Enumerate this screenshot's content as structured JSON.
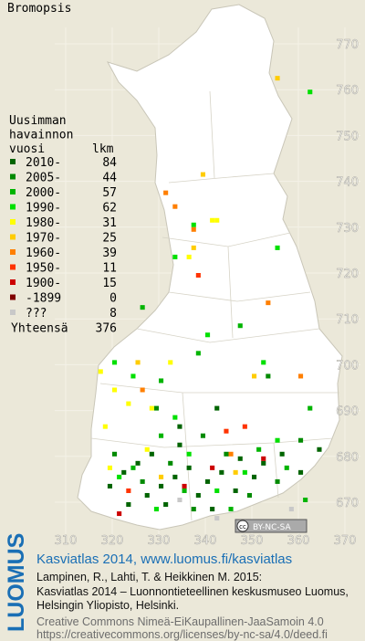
{
  "title": "Bromopsis",
  "legend": {
    "header": [
      "Uusimman",
      "havainnon",
      "vuosi"
    ],
    "count_header": "lkm",
    "rows": [
      {
        "label": "2010-",
        "count": 84,
        "color": "#006400",
        "cells": [
          [
            322,
            676
          ],
          [
            325,
            678
          ],
          [
            328,
            680
          ],
          [
            330,
            673
          ],
          [
            333,
            675
          ],
          [
            336,
            677
          ],
          [
            338,
            671
          ],
          [
            340,
            674
          ],
          [
            343,
            676
          ],
          [
            346,
            672
          ],
          [
            350,
            675
          ],
          [
            352,
            678
          ],
          [
            356,
            680
          ],
          [
            360,
            676
          ],
          [
            334,
            682
          ],
          [
            331,
            669
          ],
          [
            327,
            671
          ],
          [
            319,
            673
          ],
          [
            323,
            669
          ],
          [
            341,
            668
          ],
          [
            347,
            679
          ],
          [
            364,
            681
          ],
          [
            342,
            690
          ],
          [
            334,
            686
          ]
        ]
      },
      {
        "label": "2005-",
        "count": 44,
        "color": "#008a00",
        "cells": [
          [
            320,
            680
          ],
          [
            326,
            674
          ],
          [
            332,
            678
          ],
          [
            337,
            668
          ],
          [
            344,
            680
          ],
          [
            349,
            671
          ],
          [
            355,
            674
          ],
          [
            339,
            684
          ],
          [
            329,
            690
          ],
          [
            360,
            683
          ],
          [
            353,
            697
          ]
        ]
      },
      {
        "label": "2000-",
        "count": 57,
        "color": "#00b400",
        "cells": [
          [
            324,
            677
          ],
          [
            330,
            684
          ],
          [
            335,
            672
          ],
          [
            345,
            668
          ],
          [
            351,
            681
          ],
          [
            357,
            677
          ],
          [
            330,
            696
          ],
          [
            338,
            702
          ],
          [
            347,
            708
          ],
          [
            326,
            712
          ],
          [
            361,
            670
          ],
          [
            362,
            690
          ]
        ]
      },
      {
        "label": "1990-",
        "count": 62,
        "color": "#00e000",
        "cells": [
          [
            321,
            675
          ],
          [
            329,
            668
          ],
          [
            336,
            680
          ],
          [
            342,
            672
          ],
          [
            348,
            676
          ],
          [
            355,
            683
          ],
          [
            333,
            688
          ],
          [
            320,
            700
          ],
          [
            324,
            697
          ],
          [
            340,
            706
          ],
          [
            352,
            700
          ],
          [
            362,
            759
          ],
          [
            337,
            730
          ],
          [
            333,
            723
          ],
          [
            355,
            725
          ]
        ]
      },
      {
        "label": "1980-",
        "count": 31,
        "color": "#ffff00",
        "cells": [
          [
            319,
            677
          ],
          [
            317,
            698
          ],
          [
            320,
            694
          ],
          [
            323,
            691
          ],
          [
            332,
            700
          ],
          [
            328,
            690
          ],
          [
            341,
            731
          ],
          [
            342,
            731
          ],
          [
            336,
            723
          ],
          [
            327,
            681
          ],
          [
            318,
            686
          ]
        ]
      },
      {
        "label": "1970-",
        "count": 25,
        "color": "#ffcc00",
        "cells": [
          [
            325,
            700
          ],
          [
            330,
            675
          ],
          [
            350,
            697
          ],
          [
            339,
            741
          ],
          [
            337,
            725
          ],
          [
            355,
            762
          ],
          [
            346,
            676
          ]
        ]
      },
      {
        "label": "1960-",
        "count": 39,
        "color": "#ff7f00",
        "cells": [
          [
            331,
            737
          ],
          [
            333,
            734
          ],
          [
            337,
            729
          ],
          [
            326,
            694
          ],
          [
            345,
            680
          ],
          [
            353,
            713
          ],
          [
            360,
            697
          ]
        ]
      },
      {
        "label": "1950-",
        "count": 11,
        "color": "#ff3300",
        "cells": [
          [
            323,
            672
          ],
          [
            338,
            719
          ],
          [
            344,
            685
          ],
          [
            348,
            686
          ]
        ]
      },
      {
        "label": "1900-",
        "count": 15,
        "color": "#cc0000",
        "cells": [
          [
            321,
            667
          ],
          [
            335,
            673
          ],
          [
            341,
            677
          ],
          [
            352,
            679
          ]
        ]
      },
      {
        "label": "-1899",
        "count": 0,
        "color": "#800000",
        "cells": []
      },
      {
        "label": "???",
        "count": 8,
        "color": "#c8c8c8",
        "cells": [
          [
            334,
            670
          ],
          [
            342,
            666
          ],
          [
            358,
            668
          ]
        ]
      }
    ],
    "total_label": "Yhteensä",
    "total": 376
  },
  "xticks": [
    310,
    320,
    330,
    340,
    350,
    360,
    370
  ],
  "yticks": [
    670,
    680,
    690,
    700,
    710,
    720,
    730,
    740,
    750,
    760,
    770
  ],
  "badge": {
    "cc": "cc",
    "text": "BY-NC-SA"
  },
  "footer": {
    "brand": "LUOMUS",
    "link": "Kasviatlas 2014, www.luomus.fi/kasviatlas",
    "citation": [
      "Lampinen, R., Lahti, T. & Heikkinen M. 2015:",
      "Kasviatlas 2014 – Luonnontieteellinen keskusmuseo Luomus,",
      "Helsingin Yliopisto, Helsinki."
    ],
    "license": [
      "Creative Commons Nimeä-EiKaupallinen-JaaSamoin 4.0",
      "https://creativecommons.org/licenses/by-nc-sa/4.0/deed.fi"
    ]
  }
}
